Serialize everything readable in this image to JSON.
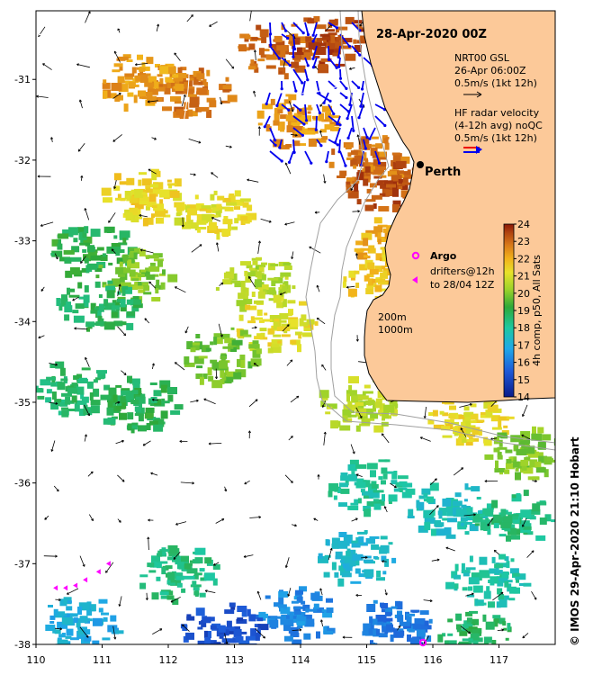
{
  "title": "28-Apr-2020 00Z",
  "legend": {
    "nrt_lines": [
      "NRT00 GSL",
      "26-Apr 06:00Z",
      "0.5m/s (1kt 12h)"
    ],
    "hf_lines": [
      "HF radar velocity",
      "(4-12h avg) noQC",
      "0.5m/s (1kt 12h)"
    ],
    "argo_label": "Argo",
    "drifter_lines": [
      "drifters@12h",
      "to 28/04 12Z"
    ],
    "depth_labels": [
      "200m",
      "1000m"
    ]
  },
  "places": [
    {
      "name": "Perth",
      "lon": 115.86,
      "lat": -31.95
    }
  ],
  "colorbar": {
    "label": "4h comp, p50, All Sats",
    "ticks": [
      "14",
      "15",
      "16",
      "17",
      "18",
      "19",
      "20",
      "21",
      "22",
      "23",
      "24"
    ],
    "min": 14,
    "max": 24
  },
  "axes": {
    "lon_ticks": [
      "110",
      "111",
      "112",
      "113",
      "114",
      "115",
      "116",
      "117"
    ],
    "lat_ticks": [
      "-31",
      "-32",
      "-33",
      "-34",
      "-35",
      "-36",
      "-37",
      "-38"
    ],
    "lon_range": [
      110,
      117.85
    ],
    "lat_range": [
      -38,
      -30.15
    ]
  },
  "credit": "© IMOS 29-Apr-2020 21:10 Hobart",
  "colors": {
    "land": "#fcc999",
    "coast": "#000000",
    "isobath": "#a0a0a0",
    "hf_vector": "#0000ee",
    "hf_reference_red": "#ee0000",
    "argo": "#ff00ff",
    "drifter": "#ff00ff"
  },
  "chart_data": {
    "type": "heatmap",
    "variable": "Sea surface temperature (°C)",
    "sst_patches": [
      {
        "lon": 112.3,
        "lat": -31.1,
        "temp": 22.8
      },
      {
        "lon": 111.5,
        "lat": -31.0,
        "temp": 22.3
      },
      {
        "lon": 113.6,
        "lat": -30.6,
        "temp": 23.0
      },
      {
        "lon": 114.4,
        "lat": -30.5,
        "temp": 23.4
      },
      {
        "lon": 113.9,
        "lat": -31.5,
        "temp": 22.4
      },
      {
        "lon": 115.0,
        "lat": -32.0,
        "temp": 22.8
      },
      {
        "lon": 115.3,
        "lat": -32.3,
        "temp": 23.3
      },
      {
        "lon": 115.4,
        "lat": -33.0,
        "temp": 22.0
      },
      {
        "lon": 115.2,
        "lat": -33.4,
        "temp": 21.6
      },
      {
        "lon": 111.6,
        "lat": -32.4,
        "temp": 21.4
      },
      {
        "lon": 112.6,
        "lat": -32.6,
        "temp": 21.2
      },
      {
        "lon": 110.8,
        "lat": -33.1,
        "temp": 19.0
      },
      {
        "lon": 111.5,
        "lat": -33.4,
        "temp": 20.0
      },
      {
        "lon": 110.9,
        "lat": -33.8,
        "temp": 18.8
      },
      {
        "lon": 113.3,
        "lat": -33.5,
        "temp": 20.5
      },
      {
        "lon": 113.6,
        "lat": -34.0,
        "temp": 21.2
      },
      {
        "lon": 112.8,
        "lat": -34.4,
        "temp": 19.8
      },
      {
        "lon": 114.8,
        "lat": -35.0,
        "temp": 20.6
      },
      {
        "lon": 116.5,
        "lat": -35.2,
        "temp": 21.3
      },
      {
        "lon": 117.3,
        "lat": -35.6,
        "temp": 20.0
      },
      {
        "lon": 110.5,
        "lat": -34.8,
        "temp": 18.6
      },
      {
        "lon": 111.5,
        "lat": -35.0,
        "temp": 18.9
      },
      {
        "lon": 115.0,
        "lat": -36.0,
        "temp": 18.0
      },
      {
        "lon": 116.2,
        "lat": -36.3,
        "temp": 17.6
      },
      {
        "lon": 117.2,
        "lat": -36.4,
        "temp": 18.4
      },
      {
        "lon": 116.8,
        "lat": -37.2,
        "temp": 17.9
      },
      {
        "lon": 114.8,
        "lat": -36.9,
        "temp": 17.3
      },
      {
        "lon": 113.9,
        "lat": -37.6,
        "temp": 16.3
      },
      {
        "lon": 115.4,
        "lat": -37.7,
        "temp": 16.0
      },
      {
        "lon": 112.8,
        "lat": -37.8,
        "temp": 15.2
      },
      {
        "lon": 112.1,
        "lat": -37.1,
        "temp": 18.4
      },
      {
        "lon": 110.6,
        "lat": -37.7,
        "temp": 17.0
      },
      {
        "lon": 116.6,
        "lat": -37.9,
        "temp": 18.7
      }
    ],
    "drifters": [
      {
        "lon": 110.3,
        "lat": -37.3
      },
      {
        "lon": 110.45,
        "lat": -37.3
      },
      {
        "lon": 110.6,
        "lat": -37.27
      },
      {
        "lon": 110.75,
        "lat": -37.2
      },
      {
        "lon": 110.95,
        "lat": -37.1
      },
      {
        "lon": 111.1,
        "lat": -37.0
      }
    ],
    "argo_floats": [
      {
        "lon": 115.85,
        "lat": -38.0
      }
    ]
  }
}
